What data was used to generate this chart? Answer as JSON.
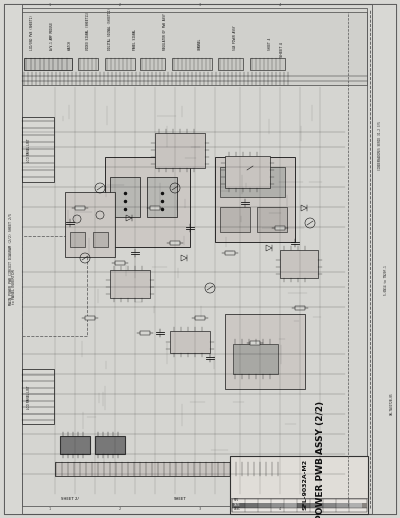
{
  "bg_color": "#c8c8c8",
  "paper_color": "#d8d8d4",
  "border_color": "#444444",
  "line_color": "#2a2a2a",
  "dark_line": "#111111",
  "mid_gray": "#888888",
  "light_gray": "#b0b0b0",
  "chip_color": "#787878",
  "title_main": "MAIN POWER PWB ASSY",
  "title_sub": "(2/2)",
  "title_model": "SFL-9032A-M2",
  "left_text": "MAIN POWER PWB CIRCUIT DIAGRAM (2/2) SHEET 2/5",
  "right_text_top": "CONDENSADORES SERIE 31-2 3/5",
  "right_text_mid": "5-6N14 to 7N20F-1",
  "right_text_bot": "ON-7A3072B-05",
  "fig_width": 4.0,
  "fig_height": 5.18,
  "dpi": 100
}
